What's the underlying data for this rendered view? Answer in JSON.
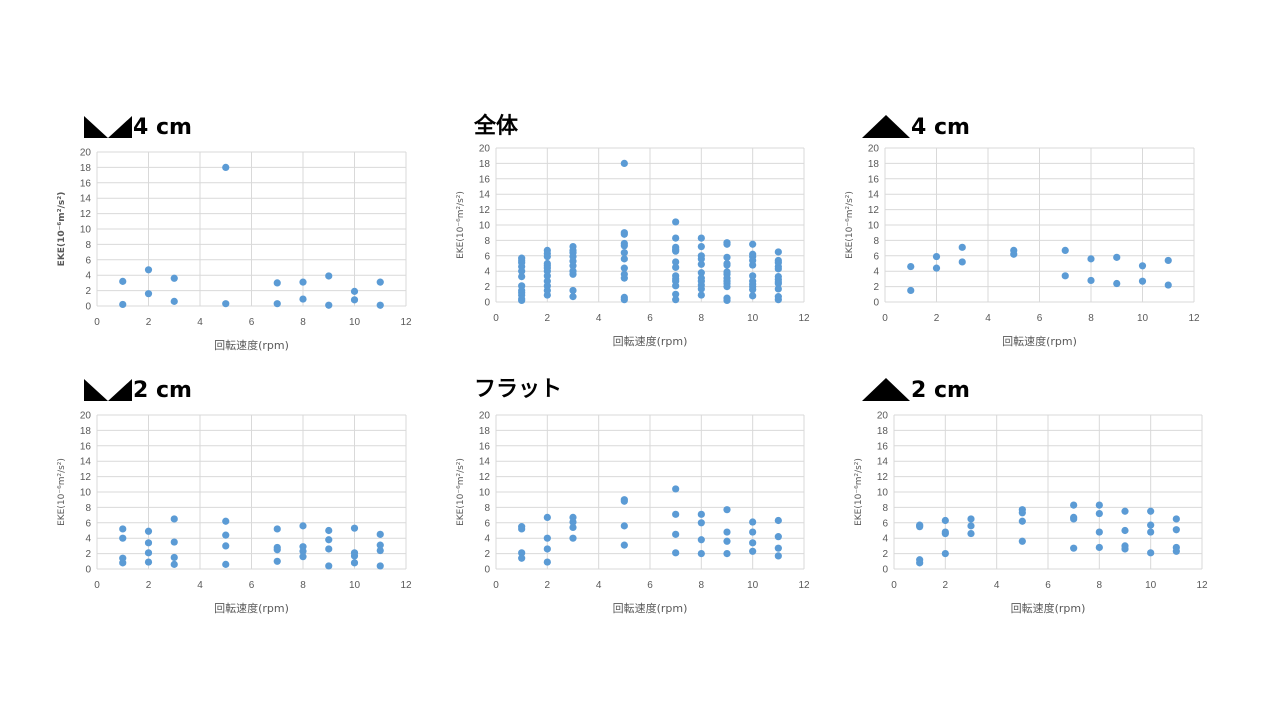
{
  "chart_data": [
    {
      "type": "scatter",
      "title": "4 cm",
      "title_icon": "double-triangle",
      "xlabel": "回転速度(rpm)",
      "ylabel": "EKE(10⁻⁶m²/s²)",
      "xlim": [
        0,
        12
      ],
      "ylim": [
        0,
        20
      ],
      "grid": true,
      "points": [
        [
          1,
          3.2
        ],
        [
          1,
          0.2
        ],
        [
          2,
          4.7
        ],
        [
          2,
          1.6
        ],
        [
          3,
          3.6
        ],
        [
          3,
          0.6
        ],
        [
          5,
          18.0
        ],
        [
          5,
          0.3
        ],
        [
          7,
          3.0
        ],
        [
          7,
          0.3
        ],
        [
          8,
          3.1
        ],
        [
          8,
          0.9
        ],
        [
          9,
          3.9
        ],
        [
          9,
          0.1
        ],
        [
          10,
          1.9
        ],
        [
          10,
          0.8
        ],
        [
          11,
          3.1
        ],
        [
          11,
          0.1
        ]
      ]
    },
    {
      "type": "scatter",
      "title": "全体",
      "title_icon": "none",
      "xlabel": "回転速度(rpm)",
      "ylabel": "EKE(10⁻⁶m²/s²)",
      "xlim": [
        0,
        12
      ],
      "ylim": [
        0,
        20
      ],
      "grid": true,
      "points": [
        [
          1,
          5.7
        ],
        [
          1,
          5.4
        ],
        [
          1,
          5.1
        ],
        [
          1,
          4.6
        ],
        [
          1,
          4.0
        ],
        [
          1,
          3.3
        ],
        [
          1,
          2.1
        ],
        [
          1,
          1.5
        ],
        [
          1,
          1.2
        ],
        [
          1,
          0.9
        ],
        [
          1,
          0.4
        ],
        [
          1,
          0.2
        ],
        [
          2,
          6.7
        ],
        [
          2,
          6.3
        ],
        [
          2,
          5.9
        ],
        [
          2,
          5.0
        ],
        [
          2,
          4.7
        ],
        [
          2,
          4.4
        ],
        [
          2,
          4.0
        ],
        [
          2,
          3.4
        ],
        [
          2,
          2.7
        ],
        [
          2,
          2.1
        ],
        [
          2,
          1.5
        ],
        [
          2,
          0.9
        ],
        [
          3,
          7.2
        ],
        [
          3,
          6.7
        ],
        [
          3,
          6.4
        ],
        [
          3,
          5.9
        ],
        [
          3,
          5.3
        ],
        [
          3,
          4.7
        ],
        [
          3,
          4.0
        ],
        [
          3,
          3.6
        ],
        [
          3,
          1.5
        ],
        [
          3,
          0.7
        ],
        [
          5,
          18.0
        ],
        [
          5,
          9.0
        ],
        [
          5,
          8.8
        ],
        [
          5,
          7.6
        ],
        [
          5,
          7.3
        ],
        [
          5,
          6.4
        ],
        [
          5,
          5.6
        ],
        [
          5,
          4.4
        ],
        [
          5,
          3.6
        ],
        [
          5,
          3.1
        ],
        [
          5,
          0.6
        ],
        [
          5,
          0.3
        ],
        [
          7,
          10.4
        ],
        [
          7,
          8.3
        ],
        [
          7,
          7.1
        ],
        [
          7,
          6.8
        ],
        [
          7,
          6.6
        ],
        [
          7,
          5.2
        ],
        [
          7,
          4.5
        ],
        [
          7,
          3.4
        ],
        [
          7,
          3.0
        ],
        [
          7,
          2.7
        ],
        [
          7,
          2.1
        ],
        [
          7,
          1.0
        ],
        [
          7,
          0.3
        ],
        [
          8,
          8.3
        ],
        [
          8,
          7.2
        ],
        [
          8,
          6.0
        ],
        [
          8,
          5.6
        ],
        [
          8,
          4.9
        ],
        [
          8,
          3.8
        ],
        [
          8,
          3.1
        ],
        [
          8,
          2.7
        ],
        [
          8,
          2.2
        ],
        [
          8,
          1.7
        ],
        [
          8,
          0.9
        ],
        [
          9,
          7.7
        ],
        [
          9,
          7.5
        ],
        [
          9,
          5.8
        ],
        [
          9,
          5.0
        ],
        [
          9,
          4.8
        ],
        [
          9,
          3.9
        ],
        [
          9,
          3.6
        ],
        [
          9,
          3.1
        ],
        [
          9,
          2.7
        ],
        [
          9,
          2.4
        ],
        [
          9,
          2.0
        ],
        [
          9,
          0.5
        ],
        [
          9,
          0.2
        ],
        [
          10,
          7.5
        ],
        [
          10,
          6.2
        ],
        [
          10,
          5.9
        ],
        [
          10,
          5.4
        ],
        [
          10,
          4.8
        ],
        [
          10,
          3.4
        ],
        [
          10,
          2.7
        ],
        [
          10,
          2.3
        ],
        [
          10,
          2.0
        ],
        [
          10,
          1.6
        ],
        [
          10,
          0.8
        ],
        [
          11,
          6.5
        ],
        [
          11,
          5.4
        ],
        [
          11,
          5.1
        ],
        [
          11,
          4.6
        ],
        [
          11,
          4.3
        ],
        [
          11,
          3.3
        ],
        [
          11,
          2.9
        ],
        [
          11,
          2.6
        ],
        [
          11,
          2.4
        ],
        [
          11,
          1.7
        ],
        [
          11,
          0.7
        ],
        [
          11,
          0.3
        ]
      ]
    },
    {
      "type": "scatter",
      "title": "4 cm",
      "title_icon": "single-triangle",
      "xlabel": "回転速度(rpm)",
      "ylabel": "EKE(10⁻⁶m²/s²)",
      "xlim": [
        0,
        12
      ],
      "ylim": [
        0,
        20
      ],
      "grid": true,
      "points": [
        [
          1,
          4.6
        ],
        [
          1,
          1.5
        ],
        [
          2,
          5.9
        ],
        [
          2,
          4.4
        ],
        [
          3,
          7.1
        ],
        [
          3,
          5.2
        ],
        [
          5,
          6.7
        ],
        [
          5,
          6.2
        ],
        [
          7,
          6.7
        ],
        [
          7,
          3.4
        ],
        [
          8,
          5.6
        ],
        [
          8,
          2.8
        ],
        [
          9,
          5.8
        ],
        [
          9,
          2.4
        ],
        [
          10,
          4.7
        ],
        [
          10,
          2.7
        ],
        [
          11,
          5.4
        ],
        [
          11,
          2.2
        ]
      ]
    },
    {
      "type": "scatter",
      "title": "2 cm",
      "title_icon": "double-triangle",
      "xlabel": "回転速度(rpm)",
      "ylabel": "EKE(10⁻⁶m²/s²)",
      "xlim": [
        0,
        12
      ],
      "ylim": [
        0,
        20
      ],
      "grid": true,
      "points": [
        [
          1,
          5.2
        ],
        [
          1,
          4.0
        ],
        [
          1,
          1.4
        ],
        [
          1,
          0.8
        ],
        [
          2,
          4.9
        ],
        [
          2,
          3.4
        ],
        [
          2,
          2.1
        ],
        [
          2,
          0.9
        ],
        [
          3,
          6.5
        ],
        [
          3,
          3.5
        ],
        [
          3,
          1.5
        ],
        [
          3,
          0.6
        ],
        [
          5,
          6.2
        ],
        [
          5,
          4.4
        ],
        [
          5,
          3.0
        ],
        [
          5,
          0.6
        ],
        [
          7,
          5.2
        ],
        [
          7,
          2.8
        ],
        [
          7,
          2.5
        ],
        [
          7,
          1.0
        ],
        [
          8,
          5.6
        ],
        [
          8,
          2.9
        ],
        [
          8,
          2.3
        ],
        [
          8,
          1.6
        ],
        [
          9,
          5.0
        ],
        [
          9,
          3.8
        ],
        [
          9,
          2.6
        ],
        [
          9,
          0.4
        ],
        [
          10,
          5.3
        ],
        [
          10,
          2.1
        ],
        [
          10,
          1.7
        ],
        [
          10,
          0.8
        ],
        [
          11,
          4.5
        ],
        [
          11,
          3.1
        ],
        [
          11,
          2.4
        ],
        [
          11,
          0.4
        ]
      ]
    },
    {
      "type": "scatter",
      "title": "フラット",
      "title_icon": "none",
      "xlabel": "回転速度(rpm)",
      "ylabel": "EKE(10⁻⁶m²/s²)",
      "xlim": [
        0,
        12
      ],
      "ylim": [
        0,
        20
      ],
      "grid": true,
      "points": [
        [
          1,
          5.5
        ],
        [
          1,
          5.2
        ],
        [
          1,
          2.1
        ],
        [
          1,
          1.4
        ],
        [
          2,
          6.7
        ],
        [
          2,
          4.0
        ],
        [
          2,
          2.6
        ],
        [
          2,
          0.9
        ],
        [
          3,
          6.7
        ],
        [
          3,
          6.1
        ],
        [
          3,
          5.4
        ],
        [
          3,
          4.0
        ],
        [
          5,
          9.0
        ],
        [
          5,
          8.8
        ],
        [
          5,
          5.6
        ],
        [
          5,
          3.1
        ],
        [
          7,
          10.4
        ],
        [
          7,
          7.1
        ],
        [
          7,
          4.5
        ],
        [
          7,
          2.1
        ],
        [
          8,
          7.1
        ],
        [
          8,
          6.0
        ],
        [
          8,
          3.8
        ],
        [
          8,
          2.0
        ],
        [
          9,
          7.7
        ],
        [
          9,
          4.8
        ],
        [
          9,
          3.6
        ],
        [
          9,
          2.0
        ],
        [
          10,
          6.1
        ],
        [
          10,
          4.8
        ],
        [
          10,
          3.4
        ],
        [
          10,
          2.3
        ],
        [
          11,
          6.3
        ],
        [
          11,
          4.2
        ],
        [
          11,
          2.7
        ],
        [
          11,
          1.7
        ]
      ]
    },
    {
      "type": "scatter",
      "title": "2 cm",
      "title_icon": "single-triangle",
      "xlabel": "回転速度(rpm)",
      "ylabel": "EKE(10⁻⁶m²/s²)",
      "xlim": [
        0,
        12
      ],
      "ylim": [
        0,
        20
      ],
      "grid": true,
      "points": [
        [
          1,
          5.7
        ],
        [
          1,
          5.5
        ],
        [
          1,
          1.2
        ],
        [
          1,
          0.8
        ],
        [
          2,
          6.3
        ],
        [
          2,
          4.8
        ],
        [
          2,
          4.6
        ],
        [
          2,
          2.0
        ],
        [
          3,
          6.5
        ],
        [
          3,
          5.6
        ],
        [
          3,
          4.6
        ],
        [
          5,
          7.7
        ],
        [
          5,
          7.3
        ],
        [
          5,
          6.2
        ],
        [
          5,
          3.6
        ],
        [
          7,
          8.3
        ],
        [
          7,
          6.7
        ],
        [
          7,
          6.5
        ],
        [
          7,
          2.7
        ],
        [
          8,
          8.3
        ],
        [
          8,
          7.2
        ],
        [
          8,
          4.8
        ],
        [
          8,
          2.8
        ],
        [
          9,
          7.5
        ],
        [
          9,
          5.0
        ],
        [
          9,
          3.0
        ],
        [
          9,
          2.6
        ],
        [
          10,
          7.5
        ],
        [
          10,
          5.7
        ],
        [
          10,
          4.8
        ],
        [
          10,
          2.1
        ],
        [
          11,
          6.5
        ],
        [
          11,
          5.1
        ],
        [
          11,
          2.8
        ],
        [
          11,
          2.3
        ]
      ]
    }
  ]
}
